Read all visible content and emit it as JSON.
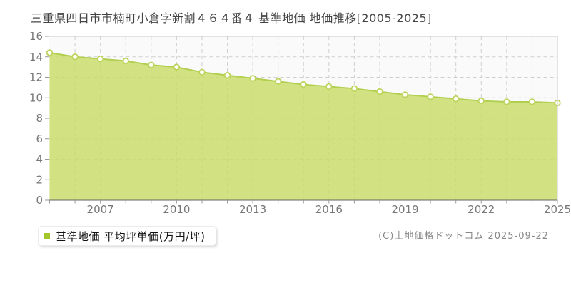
{
  "page": {
    "title": "三重県四日市市楠町小倉字新割４６４番４ 基準地価 地価推移[2005-2025]",
    "copyright": "(C)土地価格ドットコム 2025-09-22"
  },
  "legend": {
    "label": "基準地価 平均坪単価(万円/坪)",
    "marker_color": "#a3c62c"
  },
  "chart_data": {
    "type": "area",
    "title": "三重県四日市市楠町小倉字新割４６４番４ 基準地価 地価推移[2005-2025]",
    "series_name": "基準地価 平均坪単価(万円/坪)",
    "x": [
      2005,
      2006,
      2007,
      2008,
      2009,
      2010,
      2011,
      2012,
      2013,
      2014,
      2015,
      2016,
      2017,
      2018,
      2019,
      2020,
      2021,
      2022,
      2023,
      2024,
      2025
    ],
    "values": [
      14.4,
      14.0,
      13.8,
      13.6,
      13.2,
      13.0,
      12.5,
      12.2,
      11.9,
      11.6,
      11.3,
      11.1,
      10.9,
      10.6,
      10.3,
      10.1,
      9.9,
      9.7,
      9.6,
      9.6,
      9.5
    ],
    "xlabel": "",
    "ylabel": "",
    "ylim": [
      0,
      16
    ],
    "y_ticks": [
      0,
      2,
      4,
      6,
      8,
      10,
      12,
      14,
      16
    ],
    "x_tick_years": [
      2007,
      2010,
      2013,
      2016,
      2019,
      2022,
      2025
    ],
    "grid": true,
    "legend_position": "bottom-left",
    "colors": {
      "plot_bg": "#fafafa",
      "grid": "#cfcfcf",
      "border": "#c9c9c9",
      "axis": "#666666",
      "tick": "#999999",
      "tick_label": "#777777",
      "area_fill": "#c8dc64",
      "area_fill_opacity": "0.8",
      "line": "#b1cf4f",
      "marker_fill": "#fffef8",
      "marker_stroke": "#bcd45e"
    }
  }
}
